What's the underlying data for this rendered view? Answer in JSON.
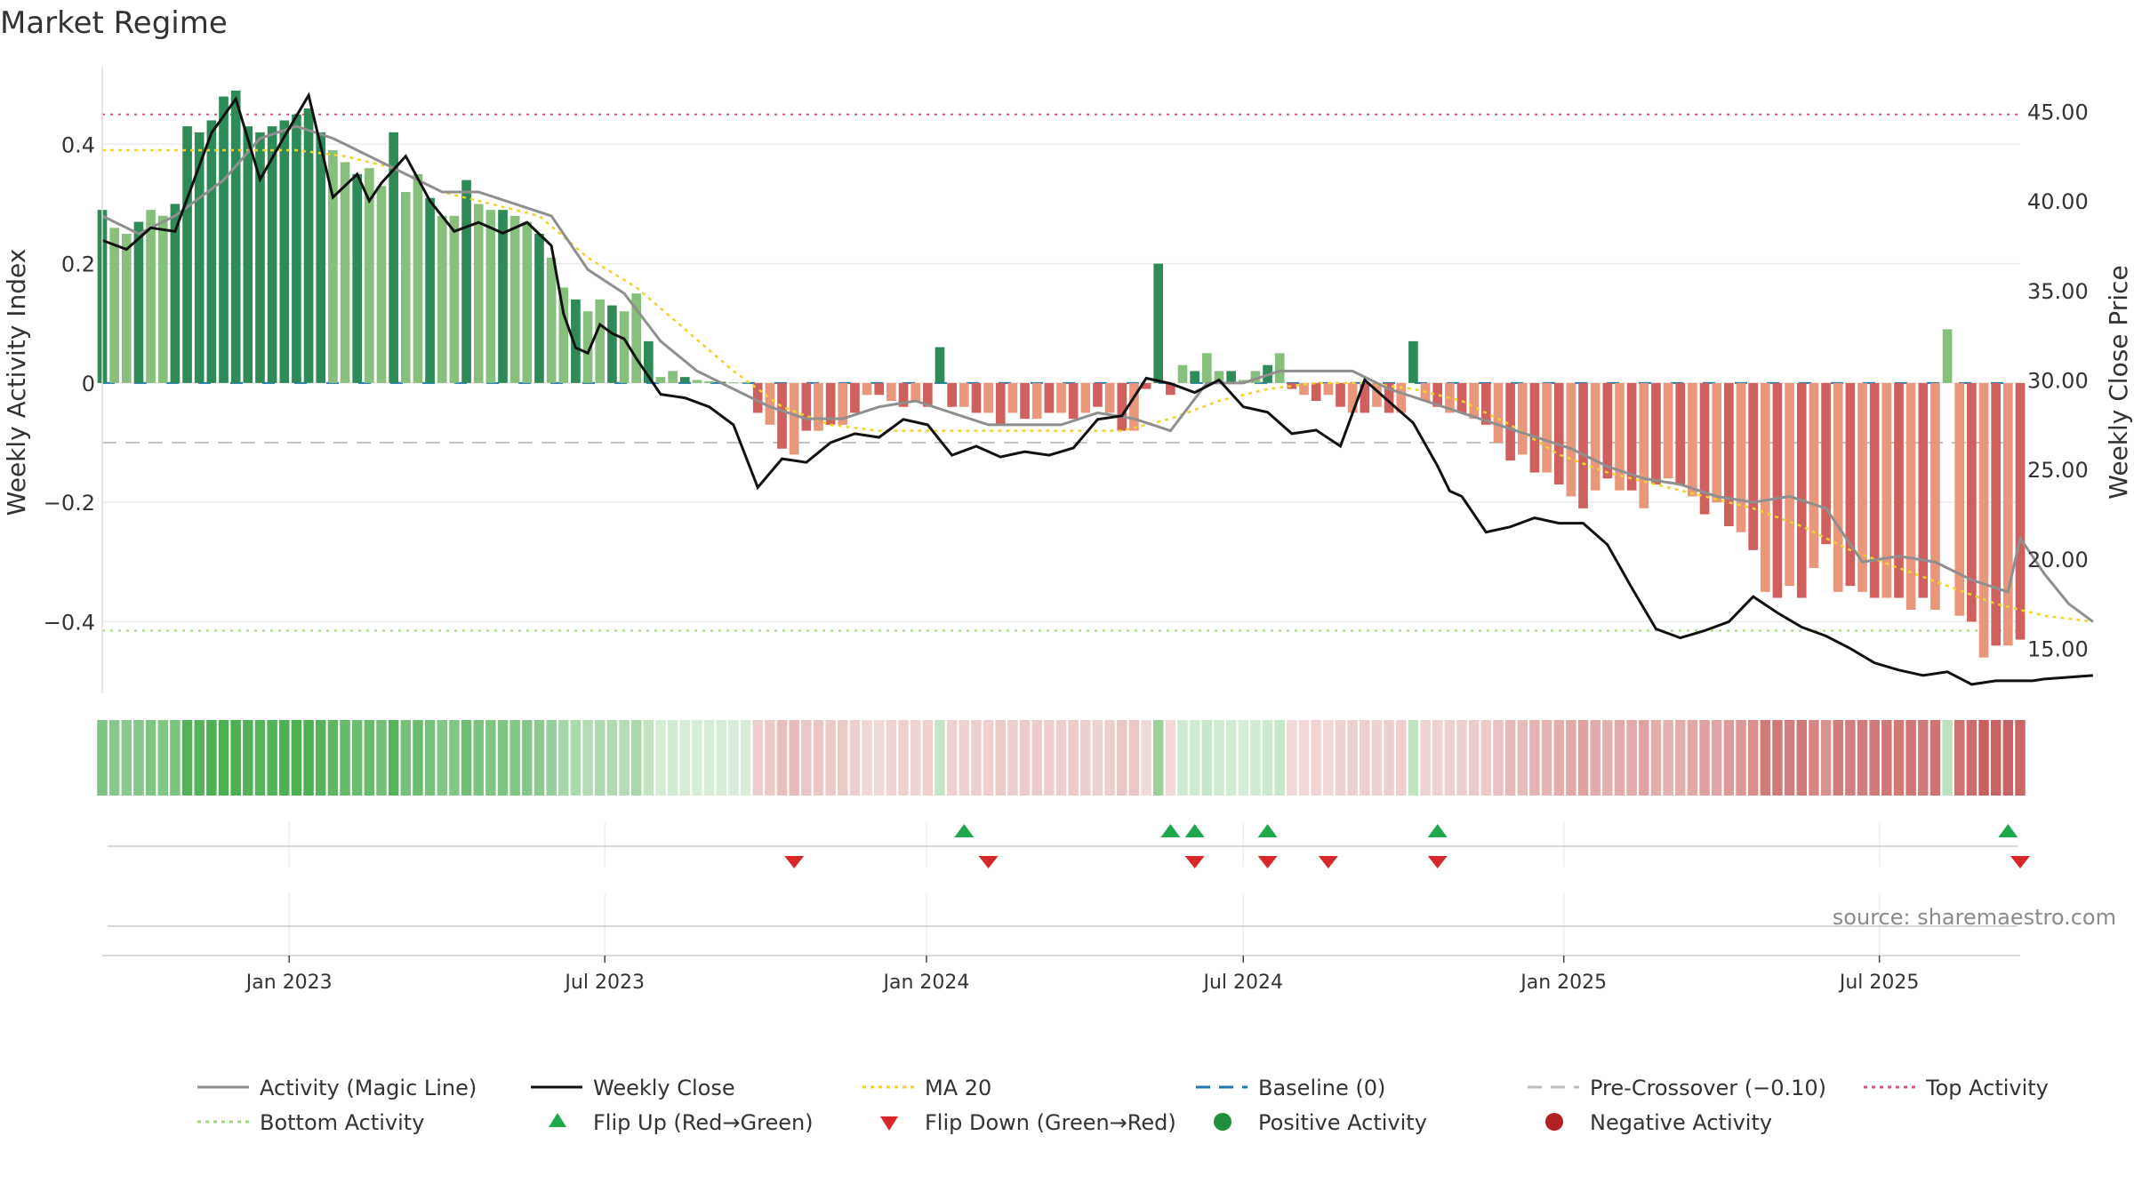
{
  "chart_data": {
    "type": "bar",
    "title": "Market Regime",
    "ylabel_left": "Weekly Activity Index",
    "ylabel_right": "Weekly Close Price",
    "source": "source: sharemaestro.com",
    "x_ticks": [
      "Jan 2023",
      "Jul 2023",
      "Jan 2024",
      "Jul 2024",
      "Jan 2025",
      "Jul 2025"
    ],
    "left_axis": {
      "ylim": [
        -0.52,
        0.53
      ],
      "ticks": [
        0.4,
        0.2,
        0,
        -0.2,
        -0.4
      ],
      "tick_labels": [
        "0.4",
        "0.2",
        "0",
        "−0.2",
        "−0.4"
      ]
    },
    "right_axis": {
      "ylim": [
        12.5,
        47.5
      ],
      "ticks": [
        45,
        40,
        35,
        30,
        25,
        20,
        15
      ],
      "tick_labels": [
        "45.00",
        "40.00",
        "35.00",
        "30.00",
        "25.00",
        "20.00",
        "15.00"
      ]
    },
    "reference_lines": {
      "top_activity": 0.45,
      "bottom_activity": -0.415,
      "baseline": 0,
      "pre_crossover": -0.1
    },
    "activity_weekly": [
      0.29,
      0.26,
      0.25,
      0.27,
      0.29,
      0.28,
      0.3,
      0.43,
      0.42,
      0.44,
      0.48,
      0.49,
      0.43,
      0.42,
      0.43,
      0.44,
      0.45,
      0.46,
      0.42,
      0.39,
      0.37,
      0.35,
      0.36,
      0.33,
      0.42,
      0.32,
      0.35,
      0.31,
      0.28,
      0.28,
      0.34,
      0.3,
      0.29,
      0.29,
      0.28,
      0.27,
      0.25,
      0.21,
      0.16,
      0.14,
      0.12,
      0.14,
      0.13,
      0.12,
      0.15,
      0.07,
      0.01,
      0.02,
      0.01,
      0.005,
      0.003,
      0.002,
      0.001,
      0.001,
      -0.05,
      -0.07,
      -0.11,
      -0.12,
      -0.08,
      -0.08,
      -0.07,
      -0.07,
      -0.05,
      -0.02,
      -0.02,
      -0.03,
      -0.04,
      -0.03,
      -0.04,
      0.06,
      -0.04,
      -0.04,
      -0.05,
      -0.05,
      -0.07,
      -0.05,
      -0.06,
      -0.06,
      -0.05,
      -0.05,
      -0.06,
      -0.05,
      -0.04,
      -0.05,
      -0.08,
      -0.08,
      -0.01,
      0.2,
      -0.02,
      0.03,
      0.02,
      0.05,
      0.02,
      0.02,
      0.005,
      0.02,
      0.03,
      0.05,
      -0.01,
      -0.02,
      -0.03,
      -0.02,
      -0.04,
      -0.05,
      -0.05,
      -0.04,
      -0.05,
      -0.05,
      0.07,
      -0.03,
      -0.04,
      -0.05,
      -0.05,
      -0.06,
      -0.07,
      -0.1,
      -0.13,
      -0.12,
      -0.15,
      -0.15,
      -0.17,
      -0.19,
      -0.21,
      -0.18,
      -0.16,
      -0.18,
      -0.18,
      -0.21,
      -0.17,
      -0.16,
      -0.17,
      -0.19,
      -0.22,
      -0.2,
      -0.24,
      -0.25,
      -0.28,
      -0.35,
      -0.36,
      -0.34,
      -0.36,
      -0.31,
      -0.27,
      -0.35,
      -0.34,
      -0.35,
      -0.36,
      -0.36,
      -0.36,
      -0.38,
      -0.36,
      -0.38,
      0.09,
      -0.39,
      -0.4,
      -0.46,
      -0.44,
      -0.44,
      -0.43
    ],
    "weekly_close_series": {
      "name": "Weekly Close",
      "x_week": [
        0,
        2,
        4,
        6,
        9,
        11,
        13,
        15,
        17,
        19,
        21,
        22,
        23,
        25,
        27,
        29,
        31,
        33,
        35,
        37,
        38,
        39,
        40,
        41,
        42,
        43,
        44,
        46,
        48,
        50,
        52,
        54,
        56,
        58,
        60,
        62,
        64,
        66,
        68,
        70,
        72,
        74,
        76,
        78,
        80,
        82,
        84,
        86,
        88,
        90,
        92,
        94,
        96,
        98,
        100,
        102,
        104,
        106,
        108,
        110,
        111,
        112,
        114,
        116,
        118,
        120,
        122,
        124,
        126,
        128,
        130,
        132,
        134,
        136,
        138,
        140,
        142,
        144,
        146,
        148,
        150,
        152,
        154,
        156,
        158,
        159,
        160,
        162,
        164
      ],
      "values": [
        37.8,
        37.3,
        38.5,
        38.3,
        43.8,
        45.7,
        41.2,
        43.6,
        45.9,
        40.2,
        41.5,
        40.0,
        41.0,
        42.5,
        40.0,
        38.3,
        38.8,
        38.2,
        38.8,
        37.5,
        33.7,
        31.8,
        31.5,
        33.1,
        32.6,
        32.3,
        31.2,
        29.2,
        29.0,
        28.5,
        27.5,
        24.0,
        25.6,
        25.4,
        26.5,
        27.0,
        26.8,
        27.8,
        27.5,
        25.8,
        26.3,
        25.7,
        26.0,
        25.8,
        26.2,
        27.8,
        28.0,
        30.1,
        29.8,
        29.3,
        30.0,
        28.5,
        28.2,
        27.0,
        27.2,
        26.3,
        30.0,
        28.8,
        27.6,
        25.2,
        23.8,
        23.5,
        21.5,
        21.8,
        22.3,
        22.0,
        22.0,
        20.8,
        18.4,
        16.1,
        15.6,
        16.0,
        16.5,
        17.9,
        17.0,
        16.2,
        15.7,
        15.0,
        14.2,
        13.8,
        13.5,
        13.7,
        13.0,
        13.2,
        13.2,
        13.2,
        13.3,
        13.4,
        13.5
      ]
    },
    "magic_line_series": {
      "name": "Activity (Magic Line)",
      "x_week": [
        0,
        3,
        6,
        10,
        13,
        16,
        19,
        22,
        25,
        28,
        31,
        34,
        37,
        40,
        43,
        46,
        49,
        52,
        55,
        58,
        61,
        64,
        67,
        70,
        73,
        76,
        79,
        82,
        85,
        88,
        91,
        94,
        97,
        100,
        103,
        106,
        109,
        112,
        115,
        118,
        121,
        124,
        127,
        130,
        133,
        136,
        139,
        142,
        145,
        148,
        151,
        154,
        157,
        158,
        160,
        162,
        164
      ],
      "values": [
        0.28,
        0.25,
        0.28,
        0.34,
        0.41,
        0.43,
        0.41,
        0.38,
        0.35,
        0.32,
        0.32,
        0.3,
        0.28,
        0.19,
        0.15,
        0.07,
        0.02,
        -0.01,
        -0.04,
        -0.06,
        -0.06,
        -0.04,
        -0.03,
        -0.05,
        -0.07,
        -0.07,
        -0.07,
        -0.05,
        -0.06,
        -0.08,
        0.0,
        0.0,
        0.02,
        0.02,
        0.02,
        -0.01,
        -0.03,
        -0.05,
        -0.07,
        -0.09,
        -0.11,
        -0.14,
        -0.16,
        -0.17,
        -0.19,
        -0.2,
        -0.19,
        -0.21,
        -0.3,
        -0.29,
        -0.3,
        -0.33,
        -0.35,
        -0.26,
        -0.32,
        -0.37,
        -0.4
      ]
    },
    "ma20_series": {
      "name": "MA 20",
      "x_week": [
        0,
        4,
        8,
        12,
        16,
        20,
        24,
        28,
        32,
        36,
        40,
        44,
        48,
        52,
        56,
        60,
        64,
        68,
        72,
        76,
        80,
        84,
        88,
        92,
        96,
        100,
        104,
        108,
        112,
        116,
        120,
        124,
        128,
        132,
        136,
        140,
        144,
        148,
        152,
        156,
        160,
        164
      ],
      "values": [
        0.39,
        0.39,
        0.39,
        0.39,
        0.39,
        0.38,
        0.36,
        0.32,
        0.3,
        0.28,
        0.21,
        0.16,
        0.09,
        0.02,
        -0.04,
        -0.07,
        -0.08,
        -0.08,
        -0.08,
        -0.08,
        -0.08,
        -0.08,
        -0.06,
        -0.03,
        -0.01,
        0.0,
        0.0,
        -0.01,
        -0.03,
        -0.07,
        -0.12,
        -0.15,
        -0.17,
        -0.19,
        -0.21,
        -0.24,
        -0.28,
        -0.31,
        -0.34,
        -0.37,
        -0.39,
        -0.4
      ]
    },
    "flip_up_weeks": [
      71,
      88,
      90,
      96,
      110,
      157
    ],
    "flip_down_weeks": [
      57,
      73,
      90,
      96,
      101,
      110,
      158
    ],
    "legend": {
      "placement": "bottom",
      "items": [
        {
          "label": "Activity (Magic Line)",
          "style": "solid",
          "color": "#8f8f8f"
        },
        {
          "label": "Weekly Close",
          "style": "solid",
          "color": "#111111"
        },
        {
          "label": "MA 20",
          "style": "dotted",
          "color": "#f0d32b"
        },
        {
          "label": "Baseline (0)",
          "style": "dashed",
          "color": "#1f77b4"
        },
        {
          "label": "Pre-Crossover (−0.10)",
          "style": "dashed",
          "color": "#bdbdbd"
        },
        {
          "label": "Top Activity",
          "style": "dotted",
          "color": "#e0507a"
        },
        {
          "label": "Bottom Activity",
          "style": "dotted",
          "color": "#9fd97e"
        },
        {
          "label": "Flip Up (Red→Green)",
          "style": "triangle-up",
          "color": "#1ea84a"
        },
        {
          "label": "Flip Down (Green→Red)",
          "style": "triangle-down",
          "color": "#d62828"
        },
        {
          "label": "Positive Activity",
          "style": "circle",
          "color": "#1e8f3a"
        },
        {
          "label": "Negative Activity",
          "style": "circle",
          "color": "#b22222"
        }
      ]
    },
    "colors": {
      "pos_strong": "#2e8b57",
      "pos_light": "#86c07c",
      "neg_strong": "#d0605e",
      "neg_light": "#e9977b",
      "grid": "#ececec",
      "axis_text": "#333333",
      "title": "#333333",
      "regime_green": "#4caf50",
      "regime_red": "#c9605e"
    }
  }
}
